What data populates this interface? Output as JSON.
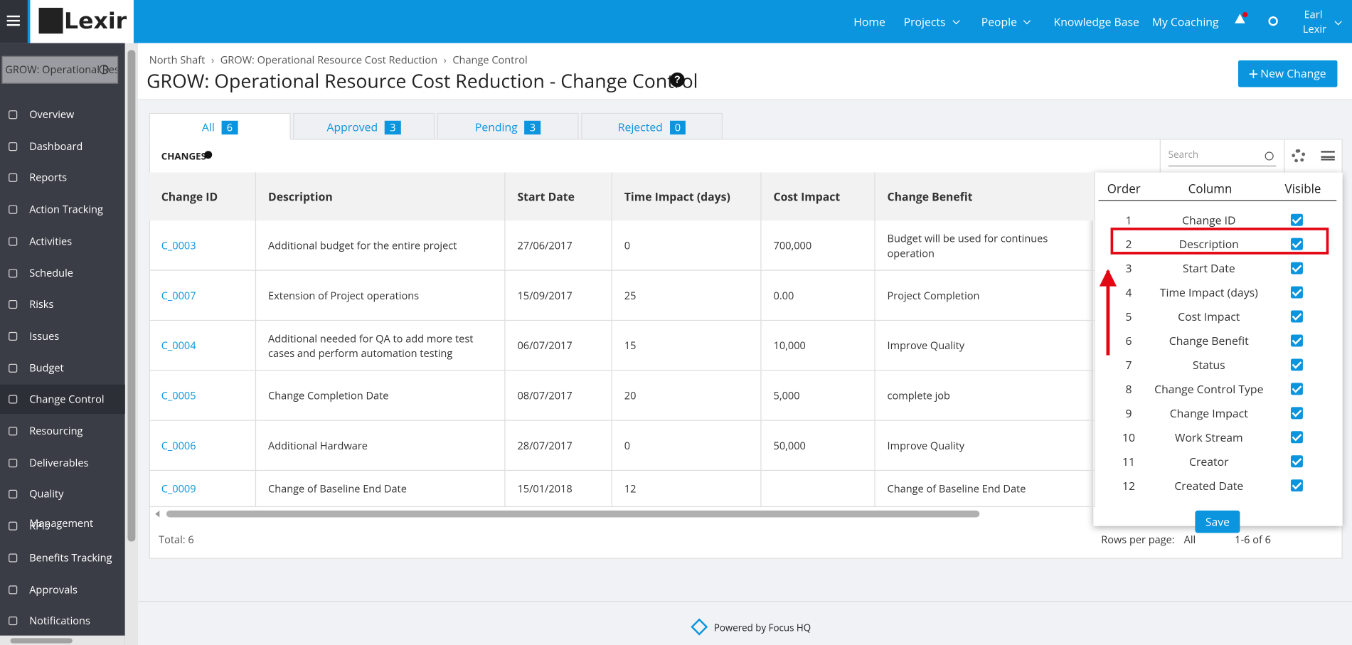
{
  "header": {
    "logo": "Lexir",
    "nav": [
      "Home",
      "Projects",
      "People",
      "Knowledge Base",
      "My Coaching"
    ],
    "user": [
      "Earl",
      "Lexir"
    ]
  },
  "sidebar": {
    "search": "GROW: Operational Resource",
    "items": [
      "Overview",
      "Dashboard",
      "Reports",
      "Action Tracking",
      "Activities",
      "Schedule",
      "Risks",
      "Issues",
      "Budget",
      "Change Control",
      "Resourcing",
      "Deliverables",
      "Quality Management",
      "KPIs",
      "Benefits Tracking",
      "Approvals",
      "Notifications"
    ],
    "active": 9
  },
  "breadcrumb": [
    "North Shaft",
    "GROW: Operational Resource Cost Reduction",
    "Change Control"
  ],
  "title": "GROW: Operational Resource Cost Reduction - Change Control",
  "new_button": "New Change",
  "tabs": [
    {
      "label": "All",
      "count": 6
    },
    {
      "label": "Approved",
      "count": 3
    },
    {
      "label": "Pending",
      "count": 3
    },
    {
      "label": "Rejected",
      "count": 0
    }
  ],
  "section": "CHANGES",
  "search_placeholder": "Search",
  "table": {
    "columns": [
      "Change ID",
      "Description",
      "Start Date",
      "Time Impact (days)",
      "Cost Impact",
      "Change Benefit"
    ],
    "rows": [
      [
        "C_0003",
        "Additional budget for the entire project",
        "27/06/2017",
        "0",
        "700,000",
        "Budget will be used for continues operation"
      ],
      [
        "C_0007",
        "Extension of Project operations",
        "15/09/2017",
        "25",
        "0.00",
        "Project Completion"
      ],
      [
        "C_0004",
        "Additional needed for QA to add more test cases and perform automation testing",
        "06/07/2017",
        "15",
        "10,000",
        "Improve Quality"
      ],
      [
        "C_0005",
        "Change Completion Date",
        "08/07/2017",
        "20",
        "5,000",
        "complete job"
      ],
      [
        "C_0006",
        "Additional Hardware",
        "28/07/2017",
        "0",
        "50,000",
        "Improve Quality"
      ],
      [
        "C_0009",
        "Change of Baseline End Date",
        "15/01/2018",
        "12",
        null,
        "Change of Baseline End Date"
      ]
    ]
  },
  "footer": {
    "total": "Total: 6",
    "rows_per_page": "Rows per page:",
    "rows_value": "All",
    "range": "1-6 of 6"
  },
  "column_settings": {
    "headers": [
      "Order",
      "Column",
      "Visible"
    ],
    "rows": [
      {
        "order": 1,
        "column": "Change ID",
        "visible": true
      },
      {
        "order": 2,
        "column": "Description",
        "visible": true
      },
      {
        "order": 3,
        "column": "Start Date",
        "visible": true
      },
      {
        "order": 4,
        "column": "Time Impact (days)",
        "visible": true
      },
      {
        "order": 5,
        "column": "Cost Impact",
        "visible": true
      },
      {
        "order": 6,
        "column": "Change Benefit",
        "visible": true
      },
      {
        "order": 7,
        "column": "Status",
        "visible": true
      },
      {
        "order": 8,
        "column": "Change Control Type",
        "visible": true
      },
      {
        "order": 9,
        "column": "Change Impact",
        "visible": true
      },
      {
        "order": 10,
        "column": "Work Stream",
        "visible": true
      },
      {
        "order": 11,
        "column": "Creator",
        "visible": true
      },
      {
        "order": 12,
        "column": "Created Date",
        "visible": true
      }
    ],
    "highlight": 1,
    "save": "Save"
  },
  "powered": "Powered by Focus HQ"
}
